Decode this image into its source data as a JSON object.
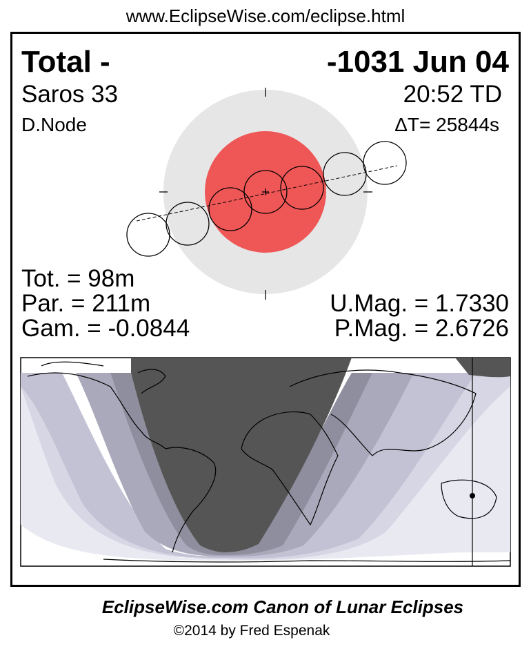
{
  "header_url": "www.EclipseWise.com/eclipse.html",
  "eclipse": {
    "type_label": "Total  -",
    "date": "-1031 Jun 04",
    "saros": "Saros  33",
    "time": "20:52 TD",
    "node": "D.Node",
    "delta_t": "ΔT=  25844s",
    "total_duration": "Tot. =  98m",
    "partial_duration": "Par. = 211m",
    "gamma": "Gam. = -0.0844",
    "umbral_magnitude": "U.Mag. = 1.7330",
    "penumbral_magnitude": "P.Mag. = 2.6726"
  },
  "colors": {
    "penumbra": "#e6e6e6",
    "umbra": "#ef5656",
    "night": "#555555",
    "map_band_colors": [
      "#e9e9f2",
      "#d6d6e4",
      "#c2c2d4",
      "#a9a9bb",
      "#8e8e9e"
    ]
  },
  "footer": {
    "title": "EclipseWise.com Canon of Lunar Eclipses",
    "copyright": "©2014 by Fred Espenak"
  }
}
